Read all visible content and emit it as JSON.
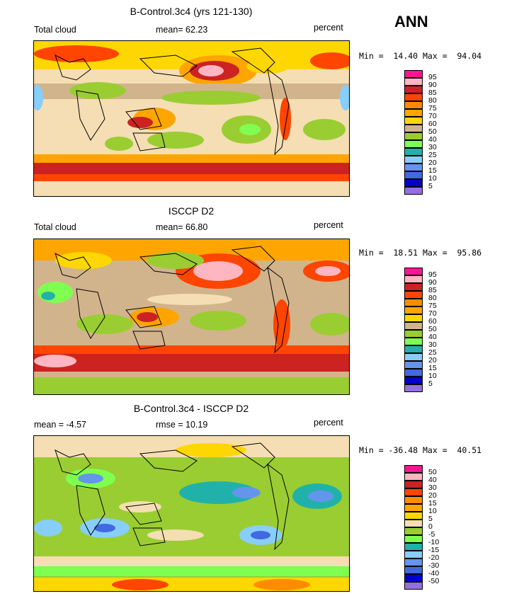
{
  "season": "ANN",
  "panels": [
    {
      "title": "B-Control.3c4 (yrs 121-130)",
      "left_label": "Total cloud",
      "center_label": "mean=  62.23",
      "units": "percent",
      "minmax": "Min =  14.40 Max =  94.04",
      "levels": [
        "95",
        "90",
        "85",
        "80",
        "75",
        "70",
        "60",
        "50",
        "40",
        "30",
        "25",
        "20",
        "15",
        "10",
        "5"
      ]
    },
    {
      "title": "ISCCP D2",
      "left_label": "Total cloud",
      "center_label": "mean=  66.80",
      "units": "percent",
      "minmax": "Min =  18.51 Max =  95.86",
      "levels": [
        "95",
        "90",
        "85",
        "80",
        "75",
        "70",
        "60",
        "50",
        "40",
        "30",
        "25",
        "20",
        "15",
        "10",
        "5"
      ]
    },
    {
      "title": "B-Control.3c4 - ISCCP D2",
      "left_label": "mean =  -4.57",
      "center_label": "rmse =  10.19",
      "units": "percent",
      "minmax": "Min = -36.48 Max =  40.51",
      "levels": [
        "50",
        "40",
        "30",
        "20",
        "15",
        "10",
        "5",
        "0",
        "-5",
        "-10",
        "-15",
        "-20",
        "-30",
        "-40",
        "-50"
      ]
    }
  ],
  "colors": [
    "#ff1493",
    "#ffb6c1",
    "#cc2222",
    "#ff4500",
    "#ff8c00",
    "#ffa500",
    "#ffd700",
    "#f5deb3",
    "#d2b48c",
    "#9acd32",
    "#7fff50",
    "#20b2aa",
    "#87cefa",
    "#6495ed",
    "#4169e1",
    "#0000cd",
    "#9370db"
  ]
}
